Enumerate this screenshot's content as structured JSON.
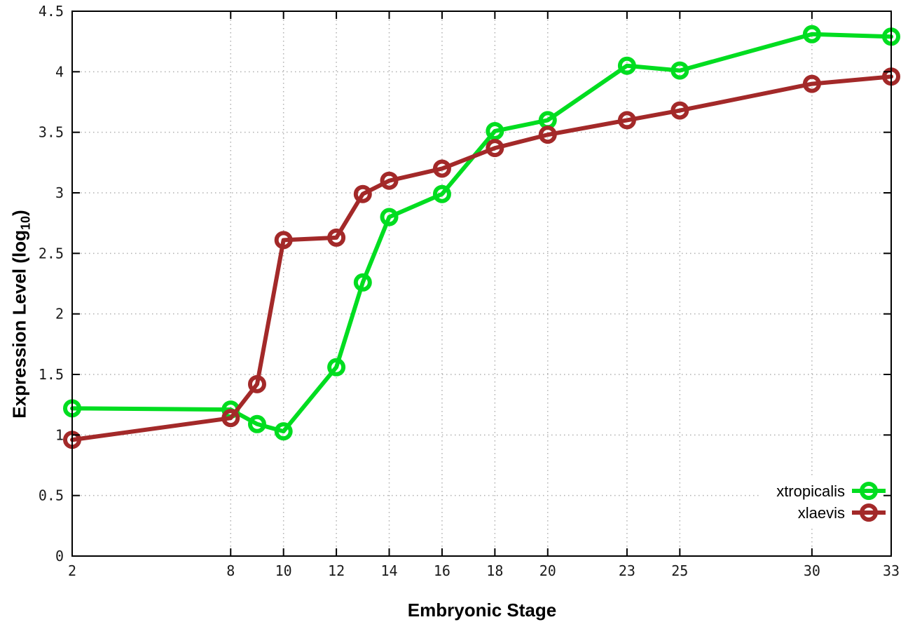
{
  "chart_data": {
    "type": "line",
    "title": "",
    "xlabel": "Embryonic Stage",
    "ylabel_prefix": "Expression Level (log",
    "ylabel_subscript": "10",
    "ylabel_suffix": ")",
    "x": [
      2,
      8,
      9,
      10,
      12,
      13,
      14,
      16,
      18,
      20,
      23,
      25,
      30,
      33
    ],
    "series": [
      {
        "name": "xtropicalis",
        "color": "#00dd20",
        "values": [
          1.22,
          1.21,
          1.09,
          1.03,
          1.56,
          2.26,
          2.8,
          2.99,
          3.51,
          3.6,
          4.05,
          4.01,
          4.31,
          4.29
        ]
      },
      {
        "name": "xlaevis",
        "color": "#a32929",
        "values": [
          0.96,
          1.14,
          1.42,
          2.61,
          2.63,
          2.99,
          3.1,
          3.2,
          3.37,
          3.48,
          3.6,
          3.68,
          3.9,
          3.96
        ]
      }
    ],
    "xticks": [
      2,
      8,
      10,
      12,
      14,
      16,
      18,
      20,
      23,
      25,
      30,
      33
    ],
    "yticks": [
      0,
      0.5,
      1,
      1.5,
      2,
      2.5,
      3,
      3.5,
      4,
      4.5
    ],
    "xlim": [
      2,
      33
    ],
    "ylim": [
      0,
      4.5
    ],
    "grid": true,
    "legend_position": "bottom-right",
    "grid_color": "#b0b0b0",
    "border_color": "#000000"
  }
}
